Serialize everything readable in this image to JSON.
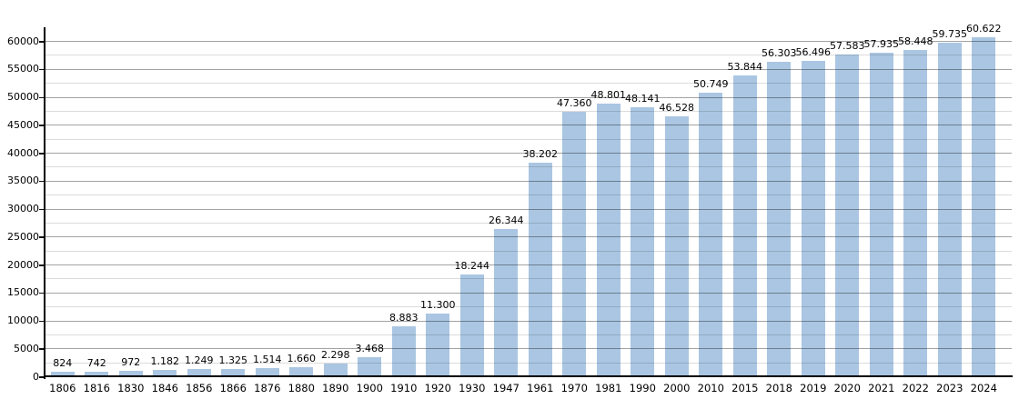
{
  "chart_data": {
    "type": "bar",
    "title": "",
    "xlabel": "",
    "ylabel": "",
    "categories": [
      "1806",
      "1816",
      "1830",
      "1846",
      "1856",
      "1866",
      "1876",
      "1880",
      "1890",
      "1900",
      "1910",
      "1920",
      "1930",
      "1947",
      "1961",
      "1970",
      "1981",
      "1990",
      "2000",
      "2010",
      "2015",
      "2018",
      "2019",
      "2020",
      "2021",
      "2022",
      "2023",
      "2024"
    ],
    "values": [
      824,
      742,
      972,
      1182,
      1249,
      1325,
      1514,
      1660,
      2298,
      3468,
      8883,
      11300,
      18244,
      26344,
      38202,
      47360,
      48801,
      48141,
      46528,
      50749,
      53844,
      56303,
      56496,
      57583,
      57935,
      58448,
      59735,
      60622
    ],
    "value_labels": [
      "824",
      "742",
      "972",
      "1.182",
      "1.249",
      "1.325",
      "1.514",
      "1.660",
      "2.298",
      "3.468",
      "8.883",
      "11.300",
      "18.244",
      "26.344",
      "38.202",
      "47.360",
      "48.801",
      "48.141",
      "46.528",
      "50.749",
      "53.844",
      "56.303",
      "56.496",
      "57.583",
      "57.935",
      "58.448",
      "59.735",
      "60.622"
    ],
    "y_tick_labels": [
      "0",
      "5000",
      "10000",
      "15000",
      "20000",
      "25000",
      "30000",
      "35000",
      "40000",
      "45000",
      "50000",
      "55000",
      "60000"
    ],
    "ylim": [
      0,
      62400
    ],
    "y_major_step": 5000,
    "y_minor_step": 2500,
    "grid": true,
    "legend": "none",
    "colors": {
      "bar": "#aac6e2",
      "major_grid": "#9e9e9e",
      "minor_grid": "#d8d8d8",
      "axis": "#000000",
      "text": "#000000",
      "background": "#ffffff"
    }
  }
}
